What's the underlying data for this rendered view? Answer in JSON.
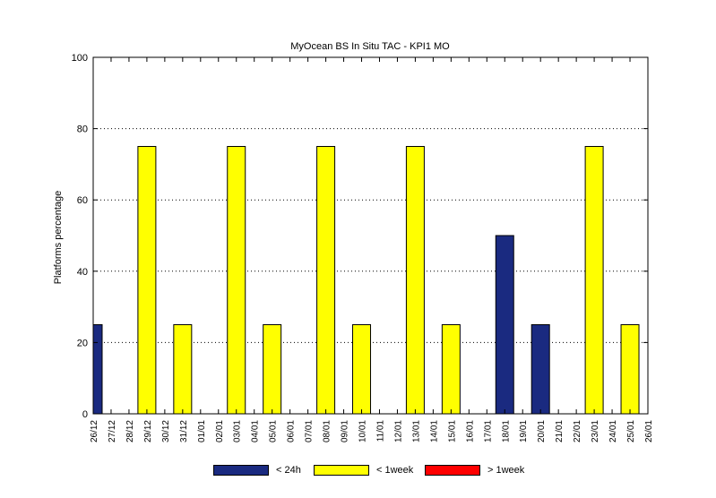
{
  "chart_data": {
    "type": "bar",
    "title": "MyOcean  BS In Situ TAC - KPI1  MO",
    "ylabel": "Platforms percentage",
    "xlabel": "",
    "ylim": [
      0,
      100
    ],
    "yticks": [
      0,
      20,
      40,
      60,
      80,
      100
    ],
    "grid": "horizontal dotted",
    "legend_position": "bottom",
    "categories": [
      "26/12",
      "27/12",
      "28/12",
      "29/12",
      "30/12",
      "31/12",
      "01/01",
      "02/01",
      "03/01",
      "04/01",
      "05/01",
      "06/01",
      "07/01",
      "08/01",
      "09/01",
      "10/01",
      "11/01",
      "12/01",
      "13/01",
      "14/01",
      "15/01",
      "16/01",
      "17/01",
      "18/01",
      "19/01",
      "20/01",
      "21/01",
      "22/01",
      "23/01",
      "24/01",
      "25/01",
      "26/01"
    ],
    "series": [
      {
        "name": "< 24h",
        "color": "#1a2a80",
        "values": [
          25,
          0,
          0,
          0,
          0,
          0,
          0,
          0,
          0,
          0,
          0,
          0,
          0,
          0,
          0,
          0,
          0,
          0,
          0,
          0,
          0,
          0,
          0,
          50,
          0,
          25,
          0,
          0,
          0,
          0,
          0,
          0
        ]
      },
      {
        "name": "< 1week",
        "color": "#ffff00",
        "values": [
          0,
          0,
          0,
          75,
          0,
          25,
          0,
          0,
          75,
          0,
          25,
          0,
          0,
          75,
          0,
          25,
          0,
          0,
          75,
          0,
          25,
          0,
          0,
          0,
          0,
          0,
          0,
          0,
          75,
          0,
          25,
          0
        ]
      },
      {
        "name": "> 1week",
        "color": "#ff0000",
        "values": [
          0,
          0,
          0,
          0,
          0,
          0,
          0,
          0,
          0,
          0,
          0,
          0,
          0,
          0,
          0,
          0,
          0,
          0,
          0,
          0,
          0,
          0,
          0,
          0,
          0,
          0,
          0,
          0,
          0,
          0,
          0,
          0
        ]
      }
    ]
  }
}
